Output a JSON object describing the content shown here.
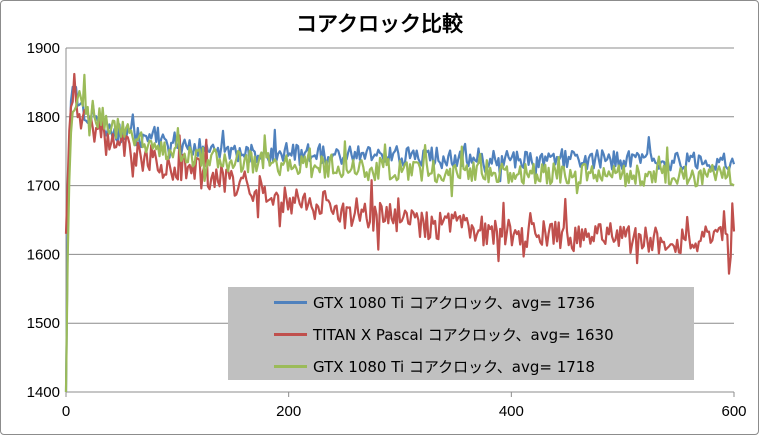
{
  "chart_data": {
    "type": "line",
    "title": "コアクロック比較",
    "xlabel": "",
    "ylabel": "",
    "xlim": [
      0,
      600
    ],
    "ylim": [
      1400,
      1900
    ],
    "x_ticks": [
      "0",
      "200",
      "400",
      "600"
    ],
    "y_ticks": [
      "1400",
      "1500",
      "1600",
      "1700",
      "1800",
      "1900"
    ],
    "grid": "horizontal",
    "legend_position": "bottom-right inside",
    "series": [
      {
        "name": "GTX 1080 Ti コアクロック、avg= 1736",
        "color": "#4f81bd",
        "points": [
          [
            0,
            1400
          ],
          [
            2,
            1700
          ],
          [
            5,
            1848
          ],
          [
            8,
            1835
          ],
          [
            12,
            1810
          ],
          [
            20,
            1800
          ],
          [
            30,
            1790
          ],
          [
            50,
            1775
          ],
          [
            80,
            1765
          ],
          [
            120,
            1755
          ],
          [
            160,
            1745
          ],
          [
            200,
            1748
          ],
          [
            260,
            1745
          ],
          [
            320,
            1742
          ],
          [
            380,
            1740
          ],
          [
            440,
            1738
          ],
          [
            500,
            1737
          ],
          [
            560,
            1736
          ],
          [
            600,
            1735
          ]
        ]
      },
      {
        "name": "TITAN X Pascal コアクロック、avg= 1630",
        "color": "#c0504d",
        "points": [
          [
            0,
            1630
          ],
          [
            3,
            1780
          ],
          [
            5,
            1826
          ],
          [
            10,
            1805
          ],
          [
            20,
            1790
          ],
          [
            40,
            1770
          ],
          [
            60,
            1750
          ],
          [
            80,
            1735
          ],
          [
            100,
            1728
          ],
          [
            120,
            1718
          ],
          [
            150,
            1705
          ],
          [
            180,
            1692
          ],
          [
            200,
            1680
          ],
          [
            240,
            1668
          ],
          [
            280,
            1655
          ],
          [
            320,
            1645
          ],
          [
            360,
            1638
          ],
          [
            400,
            1630
          ],
          [
            460,
            1625
          ],
          [
            520,
            1622
          ],
          [
            560,
            1620
          ],
          [
            600,
            1618
          ]
        ]
      },
      {
        "name": "GTX 1080 Ti コアクロック、avg= 1718",
        "color": "#9bbb59",
        "points": [
          [
            0,
            1400
          ],
          [
            2,
            1660
          ],
          [
            5,
            1800
          ],
          [
            10,
            1835
          ],
          [
            20,
            1815
          ],
          [
            40,
            1790
          ],
          [
            60,
            1770
          ],
          [
            80,
            1755
          ],
          [
            120,
            1740
          ],
          [
            160,
            1735
          ],
          [
            200,
            1730
          ],
          [
            250,
            1725
          ],
          [
            300,
            1722
          ],
          [
            350,
            1720
          ],
          [
            400,
            1718
          ],
          [
            450,
            1716
          ],
          [
            500,
            1715
          ],
          [
            550,
            1714
          ],
          [
            600,
            1715
          ]
        ]
      }
    ]
  }
}
